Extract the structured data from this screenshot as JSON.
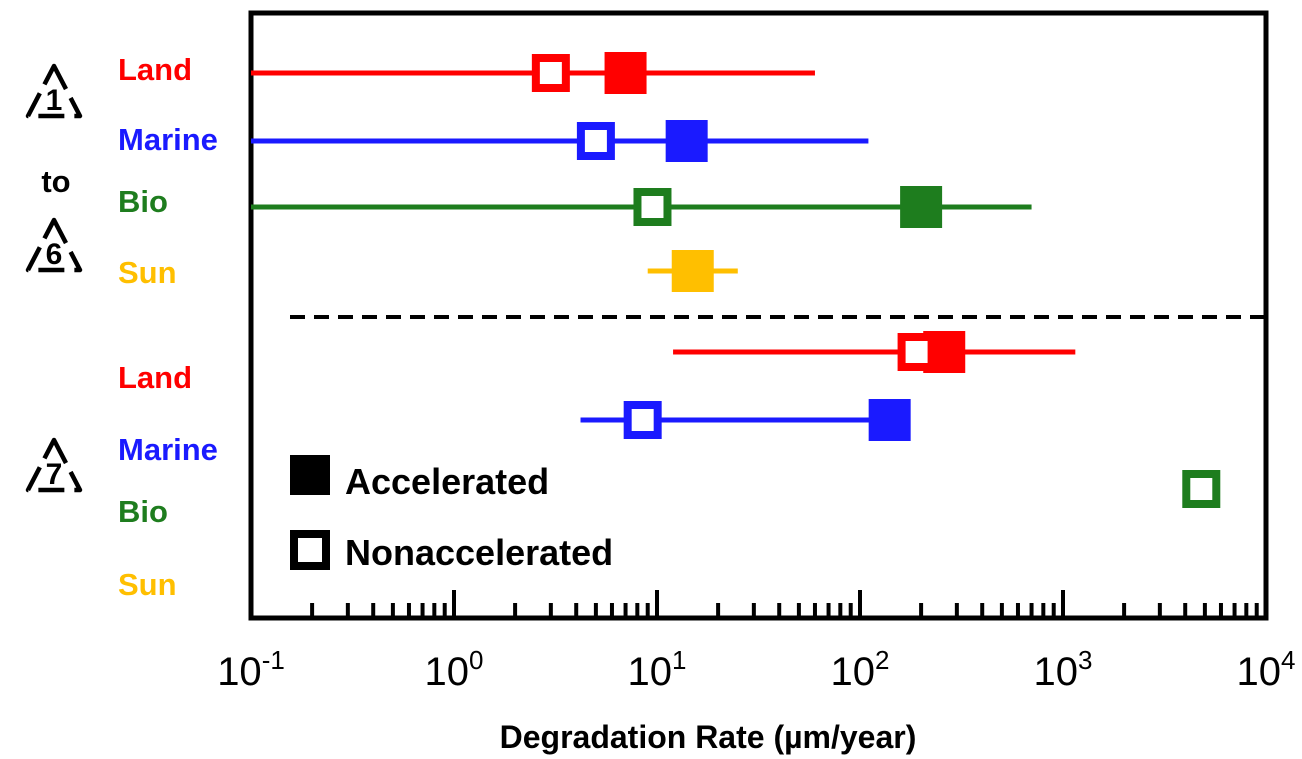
{
  "chart_data": {
    "type": "scatter",
    "xscale": "log",
    "xlim": [
      0.1,
      10000
    ],
    "xlabel": "Degradation Rate (µm/year)",
    "ticks": [
      {
        "value": 0.1,
        "base": "10",
        "exp": "-1"
      },
      {
        "value": 1,
        "base": "10",
        "exp": "0"
      },
      {
        "value": 10,
        "base": "10",
        "exp": "1"
      },
      {
        "value": 100,
        "base": "10",
        "exp": "2"
      },
      {
        "value": 1000,
        "base": "10",
        "exp": "3"
      },
      {
        "value": 10000,
        "base": "10",
        "exp": "4"
      }
    ],
    "colors": {
      "Land": "#ff0000",
      "Marine": "#1a1aff",
      "Bio": "#1e7d1e",
      "Sun": "#ffbf00"
    },
    "groups": [
      {
        "recycle_codes": [
          "1",
          "6"
        ],
        "connector": "to",
        "rows": [
          {
            "label": "Land",
            "range": [
              0.1,
              60
            ],
            "accelerated": 7,
            "nonaccelerated": 3
          },
          {
            "label": "Marine",
            "range": [
              0.1,
              110
            ],
            "accelerated": 14,
            "nonaccelerated": 5
          },
          {
            "label": "Bio",
            "range": [
              0.1,
              700
            ],
            "accelerated": 200,
            "nonaccelerated": 9.5
          },
          {
            "label": "Sun",
            "range": [
              9,
              25
            ],
            "accelerated": 15,
            "nonaccelerated": null
          }
        ]
      },
      {
        "recycle_codes": [
          "7"
        ],
        "connector": "",
        "rows": [
          {
            "label": "Land",
            "range": [
              12,
              1150
            ],
            "accelerated": 260,
            "nonaccelerated": 190
          },
          {
            "label": "Marine",
            "range": [
              4.2,
              160
            ],
            "accelerated": 140,
            "nonaccelerated": 8.5
          },
          {
            "label": "Bio",
            "range": null,
            "accelerated": null,
            "nonaccelerated": 4800
          },
          {
            "label": "Sun",
            "range": null,
            "accelerated": null,
            "nonaccelerated": null
          }
        ]
      }
    ],
    "legend": {
      "placement": "lower-left",
      "items": [
        {
          "label": "Accelerated",
          "marker": "filled-square"
        },
        {
          "label": "Nonaccelerated",
          "marker": "open-square"
        }
      ]
    }
  }
}
